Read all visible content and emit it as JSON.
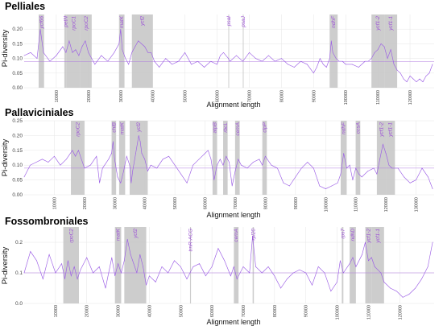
{
  "colors": {
    "line": "#9b5de5",
    "gene_label": "#9b4fd6",
    "band": "#c8c8c8",
    "grid": "#e6e6e6"
  },
  "chart_data": [
    {
      "type": "line",
      "title": "Pelliales",
      "ylabel": "Pi-diversity",
      "xlabel": "Alignment length",
      "xlim": [
        0,
        127500
      ],
      "ylim": [
        0,
        0.25
      ],
      "yticks": [
        "0.00",
        "0.05",
        "0.10",
        "0.15",
        "0.20"
      ],
      "xticks": [
        "10000",
        "20000",
        "30000",
        "40000",
        "50000",
        "60000",
        "70000",
        "80000",
        "90000",
        "100000",
        "110000",
        "120000"
      ],
      "mean": 0.09,
      "regions": [
        {
          "name": "ycf66",
          "start": 4500,
          "end": 6200
        },
        {
          "name": "petN",
          "start": 12500,
          "end": 13200
        },
        {
          "name": "rpoC1",
          "start": 13200,
          "end": 17500
        },
        {
          "name": "rpoC2",
          "start": 17500,
          "end": 21000
        },
        {
          "name": "matK",
          "start": 29500,
          "end": 31200
        },
        {
          "name": "ycf2",
          "start": 33500,
          "end": 40000
        },
        {
          "name": "psaI",
          "start": 63500,
          "end": 63700
        },
        {
          "name": "psaJ",
          "start": 68000,
          "end": 68200
        },
        {
          "name": "ndhF",
          "start": 95000,
          "end": 97500
        },
        {
          "name": "ycf1-2",
          "start": 108000,
          "end": 112000
        },
        {
          "name": "ycf1-1",
          "start": 112000,
          "end": 116000
        }
      ],
      "points": [
        [
          0,
          0.11
        ],
        [
          2000,
          0.12
        ],
        [
          4000,
          0.1
        ],
        [
          5000,
          0.2
        ],
        [
          6000,
          0.12
        ],
        [
          8000,
          0.09
        ],
        [
          10000,
          0.11
        ],
        [
          12000,
          0.14
        ],
        [
          13000,
          0.12
        ],
        [
          14000,
          0.16
        ],
        [
          15000,
          0.12
        ],
        [
          16000,
          0.13
        ],
        [
          17000,
          0.11
        ],
        [
          18000,
          0.14
        ],
        [
          19000,
          0.16
        ],
        [
          20000,
          0.12
        ],
        [
          21000,
          0.1
        ],
        [
          22000,
          0.08
        ],
        [
          24000,
          0.11
        ],
        [
          26000,
          0.09
        ],
        [
          28000,
          0.12
        ],
        [
          29500,
          0.15
        ],
        [
          30000,
          0.2
        ],
        [
          30500,
          0.13
        ],
        [
          31500,
          0.1
        ],
        [
          32500,
          0.08
        ],
        [
          33500,
          0.12
        ],
        [
          34500,
          0.14
        ],
        [
          35500,
          0.16
        ],
        [
          36500,
          0.15
        ],
        [
          37500,
          0.14
        ],
        [
          38500,
          0.12
        ],
        [
          39500,
          0.12
        ],
        [
          40500,
          0.09
        ],
        [
          42000,
          0.07
        ],
        [
          44000,
          0.1
        ],
        [
          46000,
          0.08
        ],
        [
          48000,
          0.09
        ],
        [
          50000,
          0.12
        ],
        [
          52000,
          0.08
        ],
        [
          54000,
          0.09
        ],
        [
          56000,
          0.07
        ],
        [
          58000,
          0.09
        ],
        [
          60000,
          0.08
        ],
        [
          61000,
          0.11
        ],
        [
          62000,
          0.12
        ],
        [
          63500,
          0.1
        ],
        [
          64000,
          0.09
        ],
        [
          66000,
          0.11
        ],
        [
          68000,
          0.09
        ],
        [
          70000,
          0.12
        ],
        [
          72000,
          0.1
        ],
        [
          74000,
          0.09
        ],
        [
          76000,
          0.11
        ],
        [
          78000,
          0.09
        ],
        [
          80000,
          0.1
        ],
        [
          82000,
          0.08
        ],
        [
          84000,
          0.07
        ],
        [
          86000,
          0.09
        ],
        [
          88000,
          0.08
        ],
        [
          90000,
          0.05
        ],
        [
          91000,
          0.07
        ],
        [
          92000,
          0.1
        ],
        [
          93000,
          0.08
        ],
        [
          94000,
          0.07
        ],
        [
          95000,
          0.1
        ],
        [
          95500,
          0.16
        ],
        [
          96000,
          0.12
        ],
        [
          97000,
          0.1
        ],
        [
          98000,
          0.09
        ],
        [
          99000,
          0.09
        ],
        [
          100000,
          0.08
        ],
        [
          102000,
          0.08
        ],
        [
          104000,
          0.07
        ],
        [
          106000,
          0.09
        ],
        [
          107000,
          0.09
        ],
        [
          108000,
          0.1
        ],
        [
          109000,
          0.12
        ],
        [
          110000,
          0.13
        ],
        [
          111000,
          0.15
        ],
        [
          112000,
          0.14
        ],
        [
          113000,
          0.1
        ],
        [
          114000,
          0.13
        ],
        [
          115000,
          0.08
        ],
        [
          116000,
          0.06
        ],
        [
          117000,
          0.05
        ],
        [
          118000,
          0.03
        ],
        [
          119000,
          0.02
        ],
        [
          120000,
          0.04
        ],
        [
          121000,
          0.03
        ],
        [
          122000,
          0.02
        ],
        [
          123000,
          0.03
        ],
        [
          124000,
          0.02
        ],
        [
          125000,
          0.04
        ],
        [
          126000,
          0.05
        ],
        [
          127000,
          0.08
        ]
      ]
    },
    {
      "type": "line",
      "title": "Pallaviciniales",
      "ylabel": "Pi-diversity",
      "xlabel": "Alignment length",
      "xlim": [
        0,
        136000
      ],
      "ylim": [
        0,
        0.25
      ],
      "yticks": [
        "0.00",
        "0.05",
        "0.10",
        "0.15",
        "0.20",
        "0.25"
      ],
      "xticks": [
        "10000",
        "20000",
        "30000",
        "40000",
        "50000",
        "60000",
        "70000",
        "80000",
        "90000",
        "100000",
        "110000",
        "120000",
        "130000"
      ],
      "mean": 0.09,
      "regions": [
        {
          "name": "rpoC2",
          "start": 15500,
          "end": 20000
        },
        {
          "name": "chlB",
          "start": 29000,
          "end": 30500
        },
        {
          "name": "matK",
          "start": 31500,
          "end": 33500
        },
        {
          "name": "ycf2",
          "start": 35000,
          "end": 41000
        },
        {
          "name": "atpB",
          "start": 62500,
          "end": 64000
        },
        {
          "name": "rbcL",
          "start": 66000,
          "end": 67500
        },
        {
          "name": "cemA",
          "start": 70000,
          "end": 71500
        },
        {
          "name": "clpP",
          "start": 79000,
          "end": 80500
        },
        {
          "name": "ndhF",
          "start": 105000,
          "end": 107000
        },
        {
          "name": "ccsA",
          "start": 110000,
          "end": 111500
        },
        {
          "name": "ycf1-2",
          "start": 117000,
          "end": 120000
        },
        {
          "name": "ycf1-1",
          "start": 120000,
          "end": 123000
        }
      ],
      "points": [
        [
          0,
          0.06
        ],
        [
          2000,
          0.1
        ],
        [
          4000,
          0.11
        ],
        [
          6000,
          0.12
        ],
        [
          8000,
          0.11
        ],
        [
          10000,
          0.13
        ],
        [
          12000,
          0.1
        ],
        [
          14000,
          0.12
        ],
        [
          16000,
          0.15
        ],
        [
          17000,
          0.13
        ],
        [
          18000,
          0.15
        ],
        [
          19000,
          0.12
        ],
        [
          20000,
          0.09
        ],
        [
          22000,
          0.1
        ],
        [
          24000,
          0.13
        ],
        [
          25000,
          0.04
        ],
        [
          26000,
          0.09
        ],
        [
          28000,
          0.12
        ],
        [
          29000,
          0.14
        ],
        [
          29500,
          0.18
        ],
        [
          30000,
          0.12
        ],
        [
          31000,
          0.06
        ],
        [
          32000,
          0.04
        ],
        [
          33000,
          0.08
        ],
        [
          34000,
          0.13
        ],
        [
          35000,
          0.1
        ],
        [
          35500,
          0.04
        ],
        [
          36000,
          0.08
        ],
        [
          37000,
          0.14
        ],
        [
          38000,
          0.2
        ],
        [
          38500,
          0.18
        ],
        [
          39000,
          0.14
        ],
        [
          40000,
          0.12
        ],
        [
          41000,
          0.08
        ],
        [
          42000,
          0.1
        ],
        [
          44000,
          0.09
        ],
        [
          46000,
          0.12
        ],
        [
          48000,
          0.13
        ],
        [
          50000,
          0.1
        ],
        [
          52000,
          0.07
        ],
        [
          54000,
          0.04
        ],
        [
          56000,
          0.1
        ],
        [
          58000,
          0.12
        ],
        [
          60000,
          0.14
        ],
        [
          61000,
          0.15
        ],
        [
          62000,
          0.12
        ],
        [
          63000,
          0.05
        ],
        [
          64000,
          0.1
        ],
        [
          65000,
          0.12
        ],
        [
          66000,
          0.1
        ],
        [
          67000,
          0.13
        ],
        [
          68000,
          0.11
        ],
        [
          69000,
          0.03
        ],
        [
          70000,
          0.08
        ],
        [
          71000,
          0.12
        ],
        [
          72000,
          0.1
        ],
        [
          74000,
          0.09
        ],
        [
          76000,
          0.11
        ],
        [
          78000,
          0.12
        ],
        [
          79000,
          0.1
        ],
        [
          80000,
          0.13
        ],
        [
          82000,
          0.1
        ],
        [
          84000,
          0.09
        ],
        [
          86000,
          0.04
        ],
        [
          88000,
          0.03
        ],
        [
          90000,
          0.06
        ],
        [
          92000,
          0.09
        ],
        [
          94000,
          0.11
        ],
        [
          96000,
          0.09
        ],
        [
          98000,
          0.03
        ],
        [
          100000,
          0.02
        ],
        [
          102000,
          0.03
        ],
        [
          104000,
          0.04
        ],
        [
          105000,
          0.07
        ],
        [
          106000,
          0.14
        ],
        [
          107000,
          0.09
        ],
        [
          108000,
          0.1
        ],
        [
          109000,
          0.05
        ],
        [
          110000,
          0.09
        ],
        [
          111000,
          0.07
        ],
        [
          112000,
          0.06
        ],
        [
          114000,
          0.08
        ],
        [
          116000,
          0.09
        ],
        [
          117000,
          0.07
        ],
        [
          118000,
          0.12
        ],
        [
          119000,
          0.17
        ],
        [
          120000,
          0.14
        ],
        [
          121000,
          0.1
        ],
        [
          122000,
          0.09
        ],
        [
          124000,
          0.09
        ],
        [
          126000,
          0.06
        ],
        [
          128000,
          0.04
        ],
        [
          130000,
          0.05
        ],
        [
          132000,
          0.09
        ],
        [
          134000,
          0.06
        ],
        [
          135500,
          0.02
        ]
      ]
    },
    {
      "type": "line",
      "title": "Fossombroniales",
      "ylabel": "Pi-diversity",
      "xlabel": "Alignment length",
      "xlim": [
        0,
        131000
      ],
      "ylim": [
        0,
        0.25
      ],
      "yticks": [
        "0.0",
        "0.1",
        "0.2"
      ],
      "xticks": [
        "10000",
        "20000",
        "30000",
        "40000",
        "50000",
        "60000",
        "70000",
        "80000",
        "90000",
        "100000",
        "110000",
        "120000"
      ],
      "mean": 0.1,
      "regions": [
        {
          "name": "rpoC2",
          "start": 12500,
          "end": 17500
        },
        {
          "name": "matK",
          "start": 29000,
          "end": 31000
        },
        {
          "name": "ycf2",
          "start": 32000,
          "end": 39000
        },
        {
          "name": "trnR-ACG",
          "start": 53000,
          "end": 53300
        },
        {
          "name": "cemA",
          "start": 67000,
          "end": 68500
        },
        {
          "name": "rpl20",
          "start": 73000,
          "end": 73400
        },
        {
          "name": "rps7",
          "start": 101500,
          "end": 102000
        },
        {
          "name": "ndhD",
          "start": 104000,
          "end": 106000
        },
        {
          "name": "ycf1-2",
          "start": 109000,
          "end": 111000
        },
        {
          "name": "ycf1-1",
          "start": 111000,
          "end": 115000
        }
      ],
      "points": [
        [
          0,
          0.1
        ],
        [
          2000,
          0.17
        ],
        [
          4000,
          0.14
        ],
        [
          6000,
          0.08
        ],
        [
          8000,
          0.16
        ],
        [
          10000,
          0.1
        ],
        [
          12000,
          0.13
        ],
        [
          13000,
          0.08
        ],
        [
          14000,
          0.14
        ],
        [
          15000,
          0.09
        ],
        [
          16000,
          0.12
        ],
        [
          17000,
          0.08
        ],
        [
          18000,
          0.11
        ],
        [
          20000,
          0.15
        ],
        [
          22000,
          0.1
        ],
        [
          24000,
          0.12
        ],
        [
          26000,
          0.05
        ],
        [
          28000,
          0.15
        ],
        [
          29000,
          0.09
        ],
        [
          30000,
          0.13
        ],
        [
          31000,
          0.1
        ],
        [
          32000,
          0.14
        ],
        [
          33000,
          0.21
        ],
        [
          34000,
          0.16
        ],
        [
          35000,
          0.13
        ],
        [
          36000,
          0.1
        ],
        [
          37000,
          0.16
        ],
        [
          38000,
          0.12
        ],
        [
          39000,
          0.06
        ],
        [
          40000,
          0.09
        ],
        [
          42000,
          0.07
        ],
        [
          44000,
          0.12
        ],
        [
          46000,
          0.1
        ],
        [
          48000,
          0.14
        ],
        [
          50000,
          0.12
        ],
        [
          52000,
          0.08
        ],
        [
          53000,
          0.1
        ],
        [
          54000,
          0.12
        ],
        [
          56000,
          0.13
        ],
        [
          58000,
          0.09
        ],
        [
          60000,
          0.12
        ],
        [
          62000,
          0.18
        ],
        [
          64000,
          0.14
        ],
        [
          66000,
          0.09
        ],
        [
          67000,
          0.12
        ],
        [
          68000,
          0.08
        ],
        [
          70000,
          0.12
        ],
        [
          72000,
          0.1
        ],
        [
          73000,
          0.22
        ],
        [
          74000,
          0.12
        ],
        [
          76000,
          0.1
        ],
        [
          78000,
          0.12
        ],
        [
          80000,
          0.09
        ],
        [
          82000,
          0.05
        ],
        [
          84000,
          0.08
        ],
        [
          86000,
          0.1
        ],
        [
          88000,
          0.11
        ],
        [
          90000,
          0.1
        ],
        [
          92000,
          0.06
        ],
        [
          94000,
          0.12
        ],
        [
          96000,
          0.1
        ],
        [
          98000,
          0.04
        ],
        [
          100000,
          0.07
        ],
        [
          101000,
          0.14
        ],
        [
          102000,
          0.1
        ],
        [
          104000,
          0.13
        ],
        [
          105000,
          0.15
        ],
        [
          106000,
          0.12
        ],
        [
          108000,
          0.16
        ],
        [
          109000,
          0.2
        ],
        [
          110000,
          0.14
        ],
        [
          111000,
          0.15
        ],
        [
          112000,
          0.12
        ],
        [
          113000,
          0.11
        ],
        [
          114000,
          0.1
        ],
        [
          115000,
          0.07
        ],
        [
          117000,
          0.05
        ],
        [
          119000,
          0.04
        ],
        [
          121000,
          0.02
        ],
        [
          123000,
          0.03
        ],
        [
          125000,
          0.05
        ],
        [
          127000,
          0.08
        ],
        [
          129000,
          0.12
        ],
        [
          130500,
          0.2
        ]
      ]
    }
  ]
}
